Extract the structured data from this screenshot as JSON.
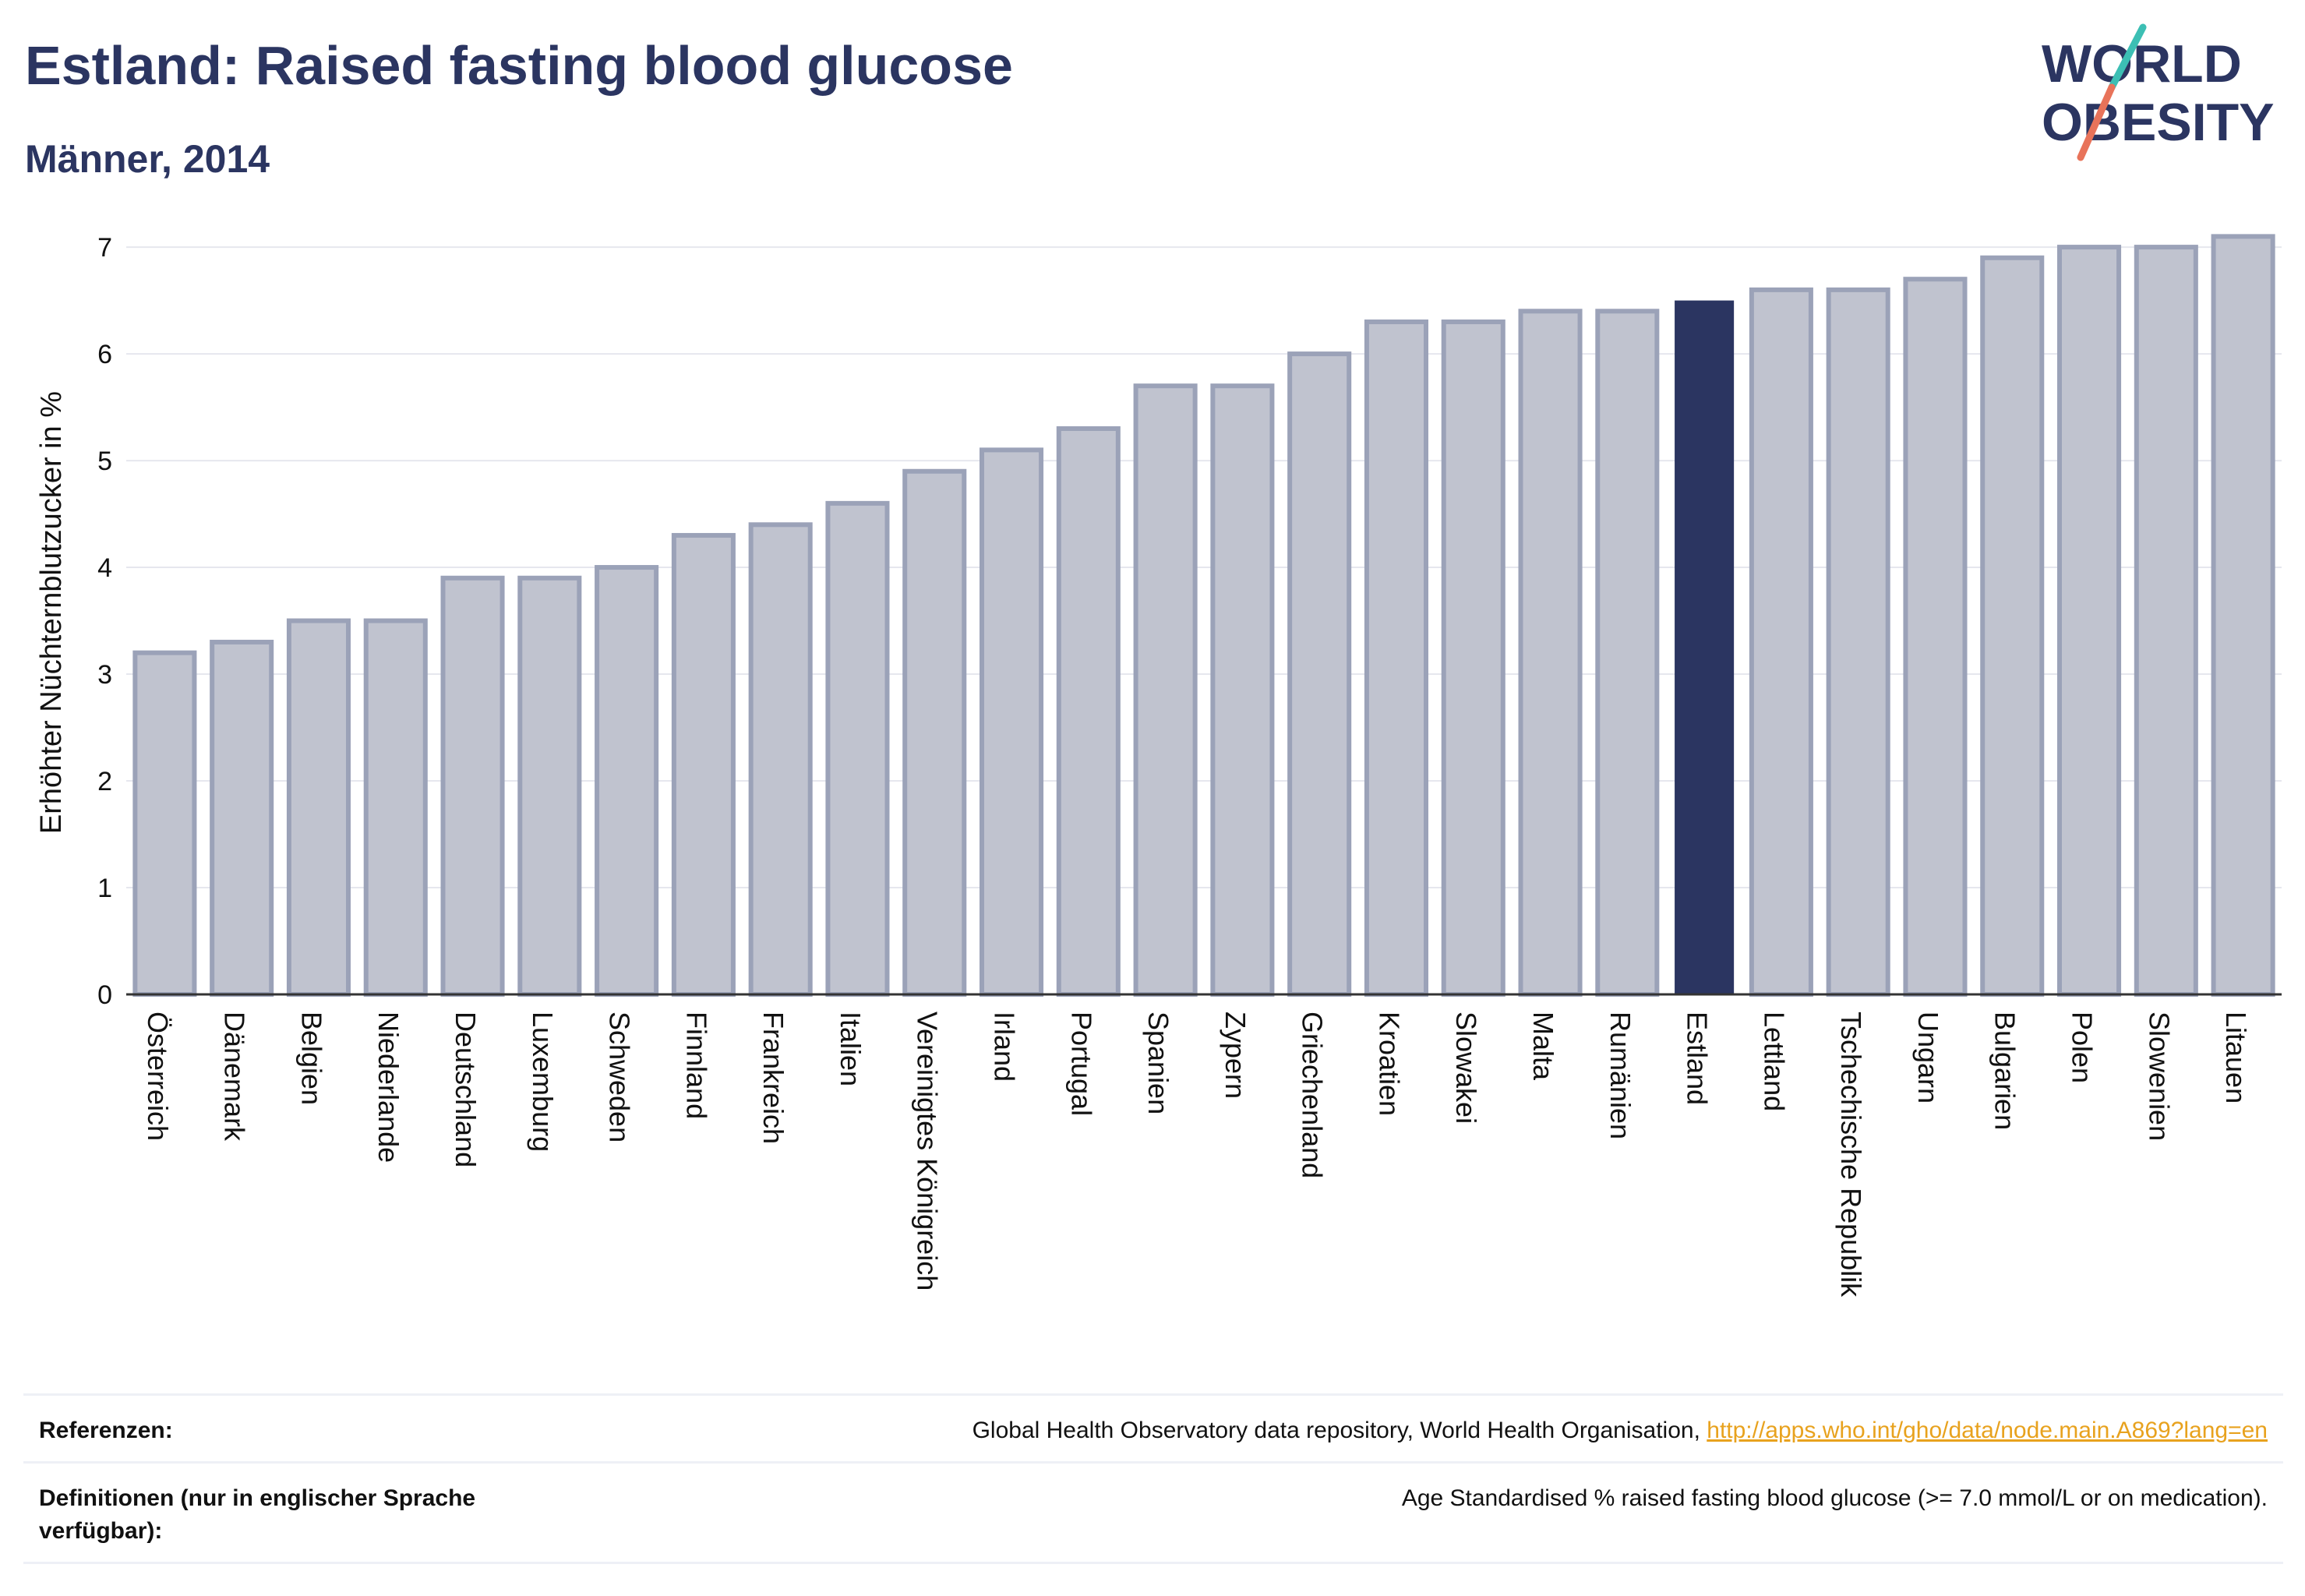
{
  "header": {
    "title": "Estland: Raised fasting blood glucose",
    "subtitle": "Männer, 2014"
  },
  "logo": {
    "line1": "WORLD",
    "line2": "OBESITY",
    "icon": "world-obesity-logo"
  },
  "colors": {
    "bar": "#c0c3cf",
    "bar_border": "#9ba2b8",
    "highlight": "#2b3561",
    "grid": "#e6e7ee",
    "text": "#2b3561",
    "link": "#e8a21e"
  },
  "chart_data": {
    "type": "bar",
    "ylabel": "Erhöhter Nüchternblutzucker in %",
    "xlabel": "",
    "ylim": [
      0,
      7.3
    ],
    "yticks": [
      0,
      1,
      2,
      3,
      4,
      5,
      6,
      7
    ],
    "grid": true,
    "highlight": "Estland",
    "categories": [
      "Österreich",
      "Dänemark",
      "Belgien",
      "Niederlande",
      "Deutschland",
      "Luxemburg",
      "Schweden",
      "Finnland",
      "Frankreich",
      "Italien",
      "Vereinigtes Königreich",
      "Irland",
      "Portugal",
      "Spanien",
      "Zypern",
      "Griechenland",
      "Kroatien",
      "Slowakei",
      "Malta",
      "Rumänien",
      "Estland",
      "Lettland",
      "Tschechische Republik",
      "Ungarn",
      "Bulgarien",
      "Polen",
      "Slowenien",
      "Litauen"
    ],
    "values": [
      3.2,
      3.3,
      3.5,
      3.5,
      3.9,
      3.9,
      4.0,
      4.3,
      4.4,
      4.6,
      4.9,
      5.1,
      5.3,
      5.7,
      5.7,
      6.0,
      6.3,
      6.3,
      6.4,
      6.4,
      6.5,
      6.6,
      6.6,
      6.7,
      6.9,
      7.0,
      7.0,
      7.1
    ]
  },
  "references": {
    "label": "Referenzen:",
    "source": "Global Health Observatory data repository, World Health Organisation,",
    "link": "http://apps.who.int/gho/data/node.main.A869?lang=en"
  },
  "definitions": {
    "label": "Definitionen (nur in englischer Sprache verfügbar):",
    "text": "Age Standardised % raised fasting blood glucose (>= 7.0 mmol/L or on medication)."
  }
}
